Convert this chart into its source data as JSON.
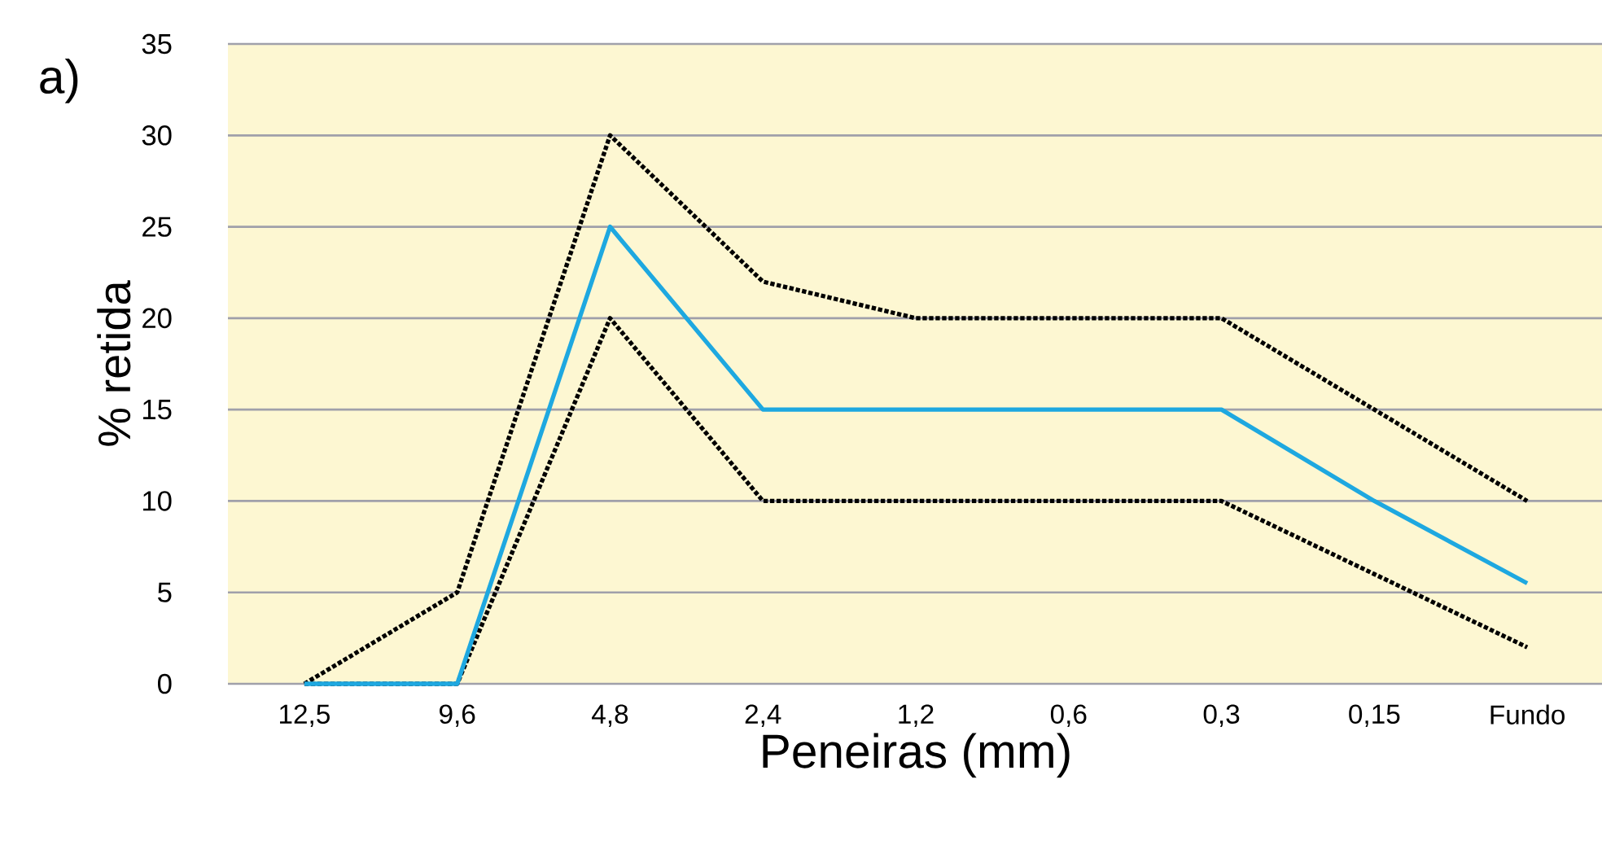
{
  "chart_data": {
    "type": "line",
    "xlabel": "Peneiras (mm)",
    "ylabel": "% retida",
    "annotations": [
      "a)"
    ],
    "categories": [
      "12,5",
      "9,6",
      "4,8",
      "2,4",
      "1,2",
      "0,6",
      "0,3",
      "0,15",
      "Fundo"
    ],
    "series": [
      {
        "color": "#000000",
        "line_style": "dotted",
        "values": [
          0,
          5,
          30,
          22,
          20,
          20,
          20,
          15,
          10
        ]
      },
      {
        "color": "#000000",
        "line_style": "dotted",
        "values": [
          0,
          0,
          20,
          10,
          10,
          10,
          10,
          6,
          2
        ]
      },
      {
        "color": "#1ea8e0",
        "line_style": "solid",
        "values": [
          0,
          0,
          25,
          15,
          15,
          15,
          15,
          10,
          5.5
        ]
      }
    ],
    "ylim": [
      0,
      35
    ],
    "yticks": [
      0,
      5,
      10,
      15,
      20,
      25,
      30,
      35
    ],
    "grid": "y",
    "marker": "none"
  }
}
